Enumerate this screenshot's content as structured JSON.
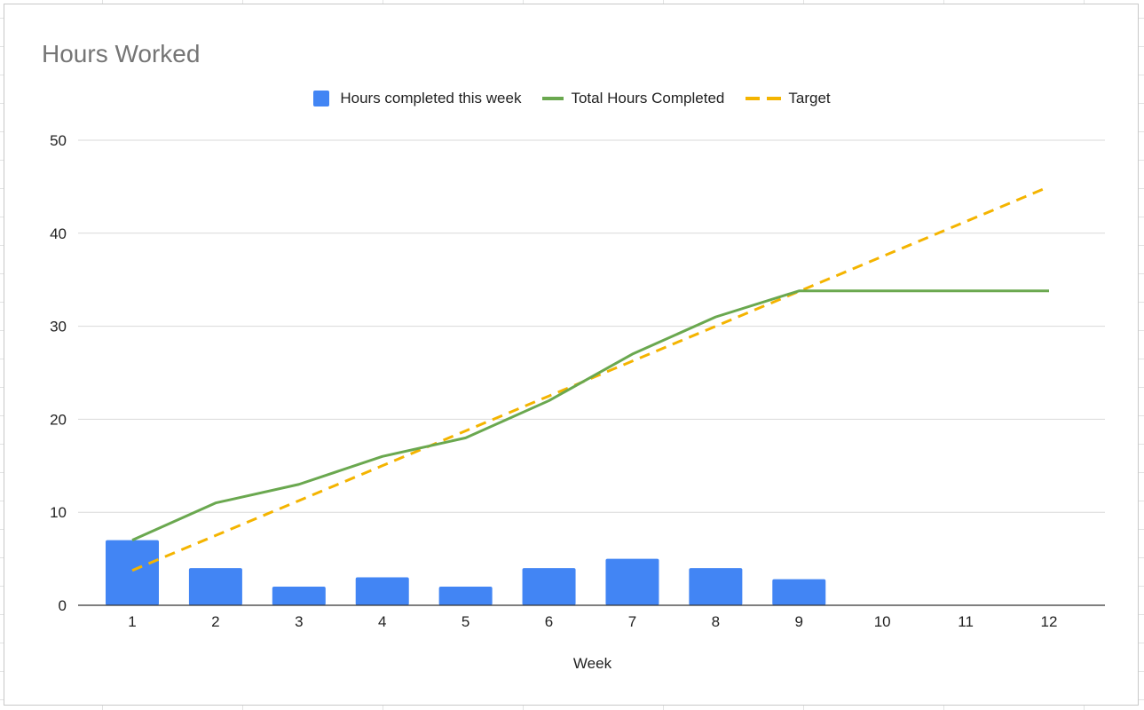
{
  "chart_data": {
    "type": "bar",
    "title": "Hours Worked",
    "xlabel": "Week",
    "ylabel": "",
    "categories": [
      "1",
      "2",
      "3",
      "4",
      "5",
      "6",
      "7",
      "8",
      "9",
      "10",
      "11",
      "12"
    ],
    "ylim": [
      0,
      50
    ],
    "yticks": [
      "0",
      "10",
      "20",
      "30",
      "40",
      "50"
    ],
    "grid": true,
    "legend_position": "top",
    "series": [
      {
        "name": "Hours completed this week",
        "kind": "bar",
        "color": "#4285f4",
        "values": [
          7,
          4,
          2,
          3,
          2,
          4,
          5,
          4,
          2.8,
          0,
          0,
          0
        ]
      },
      {
        "name": "Total Hours Completed",
        "kind": "line",
        "color": "#6aa84f",
        "values": [
          7,
          11,
          13,
          16,
          18,
          22,
          27,
          31,
          33.8,
          33.8,
          33.8,
          33.8
        ]
      },
      {
        "name": "Target",
        "kind": "dashed-line",
        "color": "#f4b400",
        "values": [
          3.75,
          7.5,
          11.25,
          15,
          18.75,
          22.5,
          26.25,
          30,
          33.75,
          37.5,
          41.25,
          45
        ]
      }
    ]
  }
}
